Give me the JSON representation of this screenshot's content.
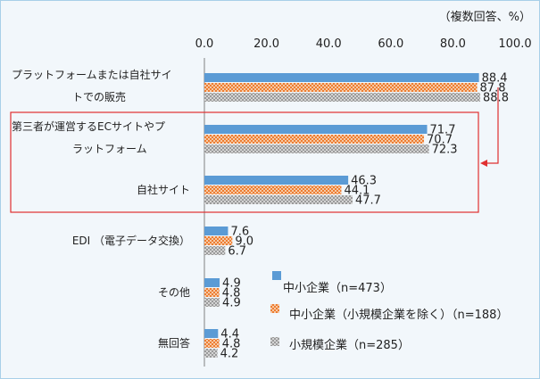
{
  "chart_data": {
    "type": "bar",
    "orientation": "horizontal",
    "unit_note": "（複数回答、%）",
    "xlim": [
      0,
      100
    ],
    "x_ticks": [
      "0.0",
      "20.0",
      "40.0",
      "60.0",
      "80.0",
      "100.0"
    ],
    "categories": [
      [
        "プラットフォームまたは自社サイ",
        "トでの販売"
      ],
      [
        "第三者が運営するECサイトやプ",
        "ラットフォーム"
      ],
      [
        "自社サイト"
      ],
      [
        "EDI （電子データ交換）"
      ],
      [
        "その他"
      ],
      [
        "無回答"
      ]
    ],
    "series": [
      {
        "name": "中小企業（n=473）",
        "color": "#5b9bd5",
        "pattern": "solid",
        "values": [
          88.4,
          71.7,
          46.3,
          7.6,
          4.9,
          4.4
        ],
        "labels": [
          "88.4",
          "71.7",
          "46.3",
          "7.6",
          "4.9",
          "4.4"
        ]
      },
      {
        "name": "中小企業（小規模企業を除く）（n=188）",
        "color": "#ed7d31",
        "pattern": "dots",
        "values": [
          87.8,
          70.7,
          44.1,
          9.0,
          4.8,
          4.8
        ],
        "labels": [
          "87.8",
          "70.7",
          "44.1",
          "9.0",
          "4.8",
          "4.8"
        ]
      },
      {
        "name": "小規模企業（n=285）",
        "color": "#a5a5a5",
        "pattern": "dots",
        "values": [
          88.8,
          72.3,
          47.7,
          6.7,
          4.9,
          4.2
        ],
        "labels": [
          "88.8",
          "72.3",
          "47.7",
          "6.7",
          "4.9",
          "4.2"
        ]
      }
    ],
    "annotation": {
      "type": "highlight-box",
      "covers": [
        "第三者が運営するECサイトやプラットフォーム",
        "自社サイト"
      ],
      "color": "#e03030"
    },
    "legend": "bottom-right"
  }
}
